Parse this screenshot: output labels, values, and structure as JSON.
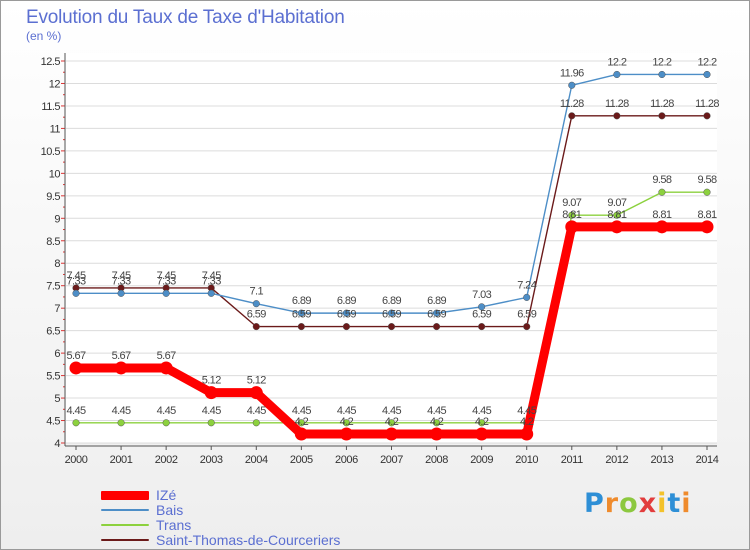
{
  "chart_data": {
    "type": "line",
    "title": "Evolution du Taux de Taxe d'Habitation",
    "subtitle": "(en %)",
    "x": [
      "2000",
      "2001",
      "2002",
      "2003",
      "2004",
      "2005",
      "2006",
      "2007",
      "2008",
      "2009",
      "2010",
      "2011",
      "2012",
      "2013",
      "2014"
    ],
    "ylim": [
      4,
      12.5
    ],
    "yticks": [
      "4",
      "4.5",
      "5",
      "5.5",
      "6",
      "6.5",
      "7",
      "7.5",
      "8",
      "8.5",
      "9",
      "9.5",
      "10",
      "10.5",
      "11",
      "11.5",
      "12",
      "12.5"
    ],
    "grid": true,
    "legend_position": "bottom-left",
    "series": [
      {
        "name": "IZé",
        "color": "#ff0000",
        "values": [
          5.67,
          5.67,
          5.67,
          5.12,
          5.12,
          4.2,
          4.2,
          4.2,
          4.2,
          4.2,
          4.2,
          8.81,
          8.81,
          8.81,
          8.81
        ],
        "labels": [
          "5.67",
          "5.67",
          "5.67",
          "5.12",
          "5.12",
          "4.2",
          "4.2",
          "4.2",
          "4.2",
          "4.2",
          "4.2",
          "8.81",
          "8.81",
          "8.81",
          "8.81"
        ]
      },
      {
        "name": "Bais",
        "color": "#4d8ec7",
        "values": [
          7.33,
          7.33,
          7.33,
          7.33,
          7.1,
          6.89,
          6.89,
          6.89,
          6.89,
          7.03,
          7.24,
          11.96,
          12.2,
          12.2,
          12.2
        ],
        "labels": [
          "7.33",
          "7.33",
          "7.33",
          "7.33",
          "7.1",
          "6.89",
          "6.89",
          "6.89",
          "6.89",
          "7.03",
          "7.24",
          "11.96",
          "12.2",
          "12.2",
          "12.2"
        ]
      },
      {
        "name": "Trans",
        "color": "#8cd13e",
        "values": [
          4.45,
          4.45,
          4.45,
          4.45,
          4.45,
          4.45,
          4.45,
          4.45,
          4.45,
          4.45,
          4.45,
          9.07,
          9.07,
          9.58,
          9.58
        ],
        "labels": [
          "4.45",
          "4.45",
          "4.45",
          "4.45",
          "4.45",
          "4.45",
          "4.45",
          "4.45",
          "4.45",
          "4.45",
          "4.45",
          "9.07",
          "9.07",
          "9.58",
          "9.58"
        ]
      },
      {
        "name": "Saint-Thomas-de-Courceriers",
        "color": "#6b1a1a",
        "values": [
          7.45,
          7.45,
          7.45,
          7.45,
          6.59,
          6.59,
          6.59,
          6.59,
          6.59,
          6.59,
          6.59,
          11.28,
          11.28,
          11.28,
          11.28
        ],
        "labels": [
          "7.45",
          "7.45",
          "7.45",
          "7.45",
          "6.59",
          "6.59",
          "6.59",
          "6.59",
          "6.59",
          "6.59",
          "6.59",
          "11.28",
          "11.28",
          "11.28",
          "11.28"
        ]
      }
    ]
  },
  "logo": {
    "text": "Proxiti",
    "letter_colors": [
      "#2e8fd6",
      "#ef8b2c",
      "#8cc83f",
      "#e23c3c",
      "#f3c22b",
      "#2e8fd6",
      "#ef8b2c"
    ]
  }
}
